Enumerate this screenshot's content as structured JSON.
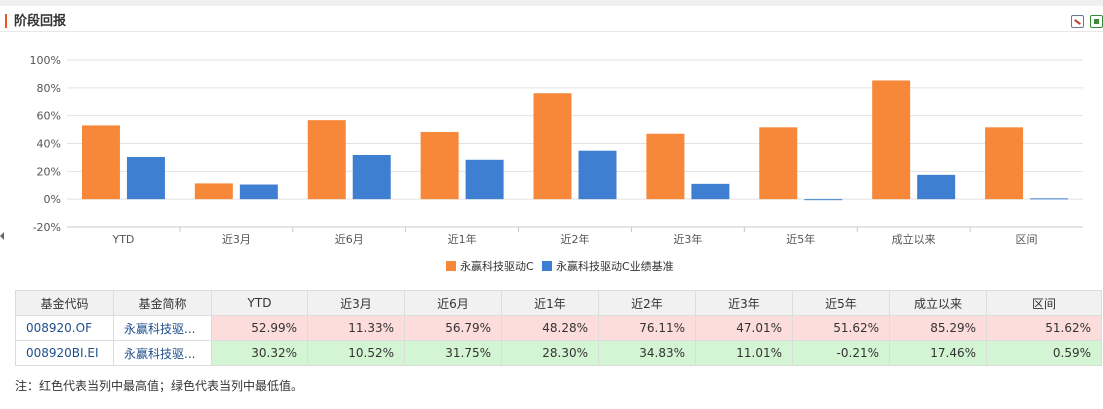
{
  "header": {
    "title": "阶段回报"
  },
  "chart_data": {
    "type": "bar",
    "categories": [
      "YTD",
      "近3月",
      "近6月",
      "近1年",
      "近2年",
      "近3年",
      "近5年",
      "成立以来",
      "区间"
    ],
    "series": [
      {
        "name": "永赢科技驱动C",
        "color": "#f7883a",
        "values": [
          52.99,
          11.33,
          56.79,
          48.28,
          76.11,
          47.01,
          51.62,
          85.29,
          51.62
        ]
      },
      {
        "name": "永赢科技驱动C业绩基准",
        "color": "#3f7fd1",
        "values": [
          30.32,
          10.52,
          31.75,
          28.3,
          34.83,
          11.01,
          -0.21,
          17.46,
          0.59
        ]
      }
    ],
    "ylim": [
      -20,
      100
    ],
    "yticks": [
      "100%",
      "80%",
      "60%",
      "40%",
      "20%",
      "0%",
      "-20%"
    ],
    "grid": true,
    "legend": "bottom-center"
  },
  "table": {
    "headers": [
      "基金代码",
      "基金简称",
      "YTD",
      "近3月",
      "近6月",
      "近1年",
      "近2年",
      "近3年",
      "近5年",
      "成立以来",
      "区间"
    ],
    "rows": [
      {
        "code": "008920.OF",
        "name": "永赢科技驱...",
        "values": [
          "52.99%",
          "11.33%",
          "56.79%",
          "48.28%",
          "76.11%",
          "47.01%",
          "51.62%",
          "85.29%",
          "51.62%"
        ]
      },
      {
        "code": "008920BI.EI",
        "name": "永赢科技驱...",
        "values": [
          "30.32%",
          "10.52%",
          "31.75%",
          "28.30%",
          "34.83%",
          "11.01%",
          "-0.21%",
          "17.46%",
          "0.59%"
        ]
      }
    ]
  },
  "note": "注：红色代表当列中最高值；绿色代表当列中最低值。"
}
